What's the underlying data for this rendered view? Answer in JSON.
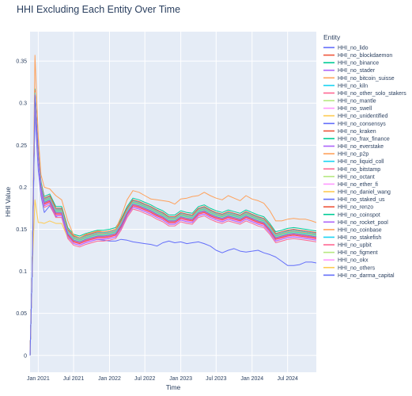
{
  "chart_data": {
    "type": "line",
    "title": "HHI Excluding Each Entity Over Time",
    "xlabel": "Time",
    "ylabel": "HHI Value",
    "xlim": [
      "2020-11-20",
      "2024-11-25"
    ],
    "ylim": [
      -0.02,
      0.385
    ],
    "grid": true,
    "legend_title": "Entity",
    "legend_position": "right",
    "x_ticks": [
      {
        "date": "2021-01-01",
        "label": "Jan 2021"
      },
      {
        "date": "2021-07-01",
        "label": "Jul 2021"
      },
      {
        "date": "2022-01-01",
        "label": "Jan 2022"
      },
      {
        "date": "2022-07-01",
        "label": "Jul 2022"
      },
      {
        "date": "2023-01-01",
        "label": "Jan 2023"
      },
      {
        "date": "2023-07-01",
        "label": "Jul 2023"
      },
      {
        "date": "2024-01-01",
        "label": "Jan 2024"
      },
      {
        "date": "2024-07-01",
        "label": "Jul 2024"
      }
    ],
    "y_ticks": [
      {
        "value": 0,
        "label": "0"
      },
      {
        "value": 0.05,
        "label": "0.05"
      },
      {
        "value": 0.1,
        "label": "0.1"
      },
      {
        "value": 0.15,
        "label": "0.15"
      },
      {
        "value": 0.2,
        "label": "0.2"
      },
      {
        "value": 0.25,
        "label": "0.25"
      },
      {
        "value": 0.3,
        "label": "0.3"
      },
      {
        "value": 0.35,
        "label": "0.35"
      }
    ],
    "x": [
      "2020-11-20",
      "2020-12-01",
      "2020-12-15",
      "2021-01-01",
      "2021-01-15",
      "2021-02-01",
      "2021-03-01",
      "2021-04-01",
      "2021-05-01",
      "2021-06-01",
      "2021-07-01",
      "2021-08-01",
      "2021-09-01",
      "2021-10-01",
      "2021-11-01",
      "2021-12-01",
      "2022-01-01",
      "2022-02-01",
      "2022-03-01",
      "2022-04-01",
      "2022-05-01",
      "2022-06-01",
      "2022-07-01",
      "2022-08-01",
      "2022-09-01",
      "2022-10-01",
      "2022-11-01",
      "2022-12-01",
      "2023-01-01",
      "2023-02-01",
      "2023-03-01",
      "2023-04-01",
      "2023-05-01",
      "2023-06-01",
      "2023-07-01",
      "2023-08-01",
      "2023-09-01",
      "2023-10-01",
      "2023-11-01",
      "2023-12-01",
      "2024-01-01",
      "2024-02-01",
      "2024-03-01",
      "2024-04-01",
      "2024-05-01",
      "2024-06-01",
      "2024-07-01",
      "2024-08-01",
      "2024-09-01",
      "2024-10-01",
      "2024-11-01",
      "2024-11-25"
    ],
    "base": [
      0.0,
      0.1,
      0.31,
      0.24,
      0.2,
      0.182,
      0.185,
      0.17,
      0.17,
      0.145,
      0.137,
      0.135,
      0.138,
      0.14,
      0.142,
      0.142,
      0.143,
      0.145,
      0.155,
      0.17,
      0.18,
      0.178,
      0.175,
      0.172,
      0.168,
      0.165,
      0.16,
      0.16,
      0.165,
      0.163,
      0.162,
      0.17,
      0.172,
      0.168,
      0.165,
      0.163,
      0.166,
      0.164,
      0.162,
      0.166,
      0.163,
      0.16,
      0.158,
      0.15,
      0.14,
      0.142,
      0.144,
      0.145,
      0.144,
      0.143,
      0.142,
      0.141
    ],
    "series": [
      {
        "name": "HHI_no_lido",
        "color": "#636efa",
        "off": 0,
        "values": [
          0.0,
          0.1,
          0.29,
          0.22,
          0.19,
          0.17,
          0.178,
          0.165,
          0.168,
          0.147,
          0.137,
          0.134,
          0.136,
          0.138,
          0.138,
          0.137,
          0.136,
          0.136,
          0.138,
          0.137,
          0.135,
          0.134,
          0.133,
          0.132,
          0.13,
          0.134,
          0.136,
          0.134,
          0.135,
          0.133,
          0.134,
          0.135,
          0.133,
          0.13,
          0.125,
          0.122,
          0.125,
          0.127,
          0.124,
          0.123,
          0.124,
          0.125,
          0.122,
          0.12,
          0.117,
          0.112,
          0.107,
          0.107,
          0.108,
          0.111,
          0.111,
          0.11
        ]
      },
      {
        "name": "HHI_no_blockdaemon",
        "color": "#ef553b",
        "off": 0.003
      },
      {
        "name": "HHI_no_binance",
        "color": "#00cc96",
        "off": 0.007
      },
      {
        "name": "HHI_no_stader",
        "color": "#ab63fa",
        "off": 0.0
      },
      {
        "name": "HHI_no_bitcoin_suisse",
        "color": "#ffa15a",
        "off": 0.002
      },
      {
        "name": "HHI_no_kiln",
        "color": "#19d3f3",
        "off": 0.004
      },
      {
        "name": "HHI_no_other_solo_stakers",
        "color": "#ff6692",
        "off": -0.006
      },
      {
        "name": "HHI_no_mantle",
        "color": "#b6e880",
        "off": 0.0
      },
      {
        "name": "HHI_no_swell",
        "color": "#ff97ff",
        "off": -0.002
      },
      {
        "name": "HHI_no_unidentified",
        "color": "#fecb52",
        "off": 0.0,
        "values": [
          0.0,
          0.1,
          0.185,
          0.158,
          0.158,
          0.157,
          0.16,
          0.157,
          0.157,
          0.14,
          0.135,
          0.136,
          0.138,
          0.14,
          0.142,
          0.141,
          0.142,
          0.145,
          0.155,
          0.17,
          0.18,
          0.178,
          0.175,
          0.172,
          0.168,
          0.165,
          0.16,
          0.16,
          0.165,
          0.163,
          0.162,
          0.17,
          0.172,
          0.168,
          0.165,
          0.163,
          0.166,
          0.164,
          0.162,
          0.166,
          0.163,
          0.16,
          0.158,
          0.15,
          0.14,
          0.142,
          0.144,
          0.145,
          0.144,
          0.143,
          0.142,
          0.141
        ]
      },
      {
        "name": "HHI_no_consensys",
        "color": "#636efa",
        "off": 0.001
      },
      {
        "name": "HHI_no_kraken",
        "color": "#ef553b",
        "off": 0.005
      },
      {
        "name": "HHI_no_frax_finance",
        "color": "#00cc96",
        "off": 0.001
      },
      {
        "name": "HHI_no_everstake",
        "color": "#ab63fa",
        "off": -0.001
      },
      {
        "name": "HHI_no_p2p",
        "color": "#ffa15a",
        "off": 0.003
      },
      {
        "name": "HHI_no_liquid_coll",
        "color": "#19d3f3",
        "off": 0.0
      },
      {
        "name": "HHI_no_bitstamp",
        "color": "#ff6692",
        "off": -0.001
      },
      {
        "name": "HHI_no_octant",
        "color": "#b6e880",
        "off": 0.001
      },
      {
        "name": "HHI_no_ether_fi",
        "color": "#ff97ff",
        "off": -0.003
      },
      {
        "name": "HHI_no_daniel_wang",
        "color": "#fecb52",
        "off": 0.002
      },
      {
        "name": "HHI_no_staked_us",
        "color": "#636efa",
        "off": 0.0
      },
      {
        "name": "HHI_no_renzo",
        "color": "#ef553b",
        "off": -0.002
      },
      {
        "name": "HHI_no_coinspot",
        "color": "#00cc96",
        "off": 0.001
      },
      {
        "name": "HHI_no_rocket_pool",
        "color": "#ab63fa",
        "off": -0.004
      },
      {
        "name": "HHI_no_coinbase",
        "color": "#ffa15a",
        "off": 0.013,
        "values": [
          0.0,
          0.1,
          0.357,
          0.26,
          0.215,
          0.2,
          0.198,
          0.19,
          0.185,
          0.16,
          0.143,
          0.14,
          0.144,
          0.146,
          0.148,
          0.147,
          0.148,
          0.15,
          0.165,
          0.185,
          0.196,
          0.194,
          0.19,
          0.186,
          0.185,
          0.184,
          0.183,
          0.18,
          0.186,
          0.187,
          0.189,
          0.19,
          0.194,
          0.19,
          0.187,
          0.185,
          0.19,
          0.187,
          0.184,
          0.19,
          0.186,
          0.184,
          0.181,
          0.172,
          0.16,
          0.16,
          0.162,
          0.163,
          0.162,
          0.162,
          0.16,
          0.158
        ]
      },
      {
        "name": "HHI_no_stakefish",
        "color": "#19d3f3",
        "off": 0.002
      },
      {
        "name": "HHI_no_upbit",
        "color": "#ff6692",
        "off": 0.0
      },
      {
        "name": "HHI_no_figment",
        "color": "#b6e880",
        "off": 0.001
      },
      {
        "name": "HHI_no_okx",
        "color": "#ff97ff",
        "off": 0.0
      },
      {
        "name": "HHI_no_others",
        "color": "#fecb52",
        "off": 0.0
      },
      {
        "name": "HHI_no_darma_capital",
        "color": "#636efa",
        "off": 0.0
      }
    ]
  }
}
